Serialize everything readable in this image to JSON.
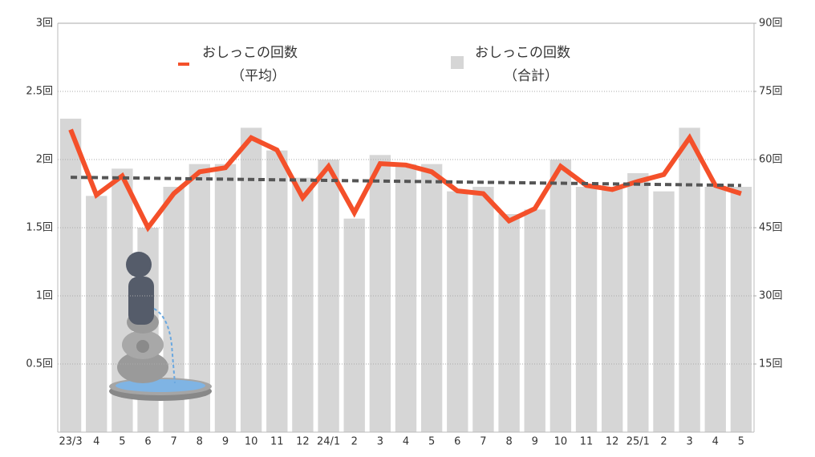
{
  "chart_data": {
    "type": "bar_line",
    "categories": [
      "23/3",
      "4",
      "5",
      "6",
      "7",
      "8",
      "9",
      "10",
      "11",
      "12",
      "24/1",
      "2",
      "3",
      "4",
      "5",
      "6",
      "7",
      "8",
      "9",
      "10",
      "11",
      "12",
      "25/1",
      "2",
      "3",
      "4",
      "5"
    ],
    "series": [
      {
        "name": "おしっこの回数",
        "name_note": "（平均）",
        "color": "#f4502a",
        "type": "line",
        "axis": "y",
        "values": [
          2.22,
          1.74,
          1.88,
          1.5,
          1.75,
          1.91,
          1.94,
          2.16,
          2.07,
          1.72,
          1.95,
          1.61,
          1.97,
          1.96,
          1.91,
          1.77,
          1.75,
          1.55,
          1.64,
          1.95,
          1.81,
          1.78,
          1.84,
          1.89,
          2.16,
          1.81,
          1.75
        ]
      },
      {
        "name": "おしっこの回数",
        "name_note": "（合計）",
        "color": "#d6d6d6",
        "type": "bar",
        "axis": "y2",
        "values": [
          69,
          52,
          58,
          45,
          54,
          59,
          59,
          67,
          62,
          56,
          60,
          47,
          61,
          59,
          59,
          53,
          54,
          48,
          49,
          60,
          54,
          54,
          57,
          53,
          67,
          54,
          54
        ]
      }
    ],
    "trendline": {
      "start": 1.87,
      "end": 1.81,
      "color": "#555555"
    },
    "ylim": [
      0,
      3
    ],
    "yticks": [
      {
        "value": 0.5,
        "label": "0.5回"
      },
      {
        "value": 1,
        "label": "1回"
      },
      {
        "value": 1.5,
        "label": "1.5回"
      },
      {
        "value": 2,
        "label": "2回"
      },
      {
        "value": 2.5,
        "label": "2.5回"
      },
      {
        "value": 3,
        "label": "3回"
      }
    ],
    "y2lim": [
      0,
      90
    ],
    "y2ticks": [
      {
        "value": 15,
        "label": "15回"
      },
      {
        "value": 30,
        "label": "30回"
      },
      {
        "value": 45,
        "label": "45回"
      },
      {
        "value": 60,
        "label": "60回"
      },
      {
        "value": 75,
        "label": "75回"
      },
      {
        "value": 90,
        "label": "90回"
      }
    ],
    "grid": true
  }
}
